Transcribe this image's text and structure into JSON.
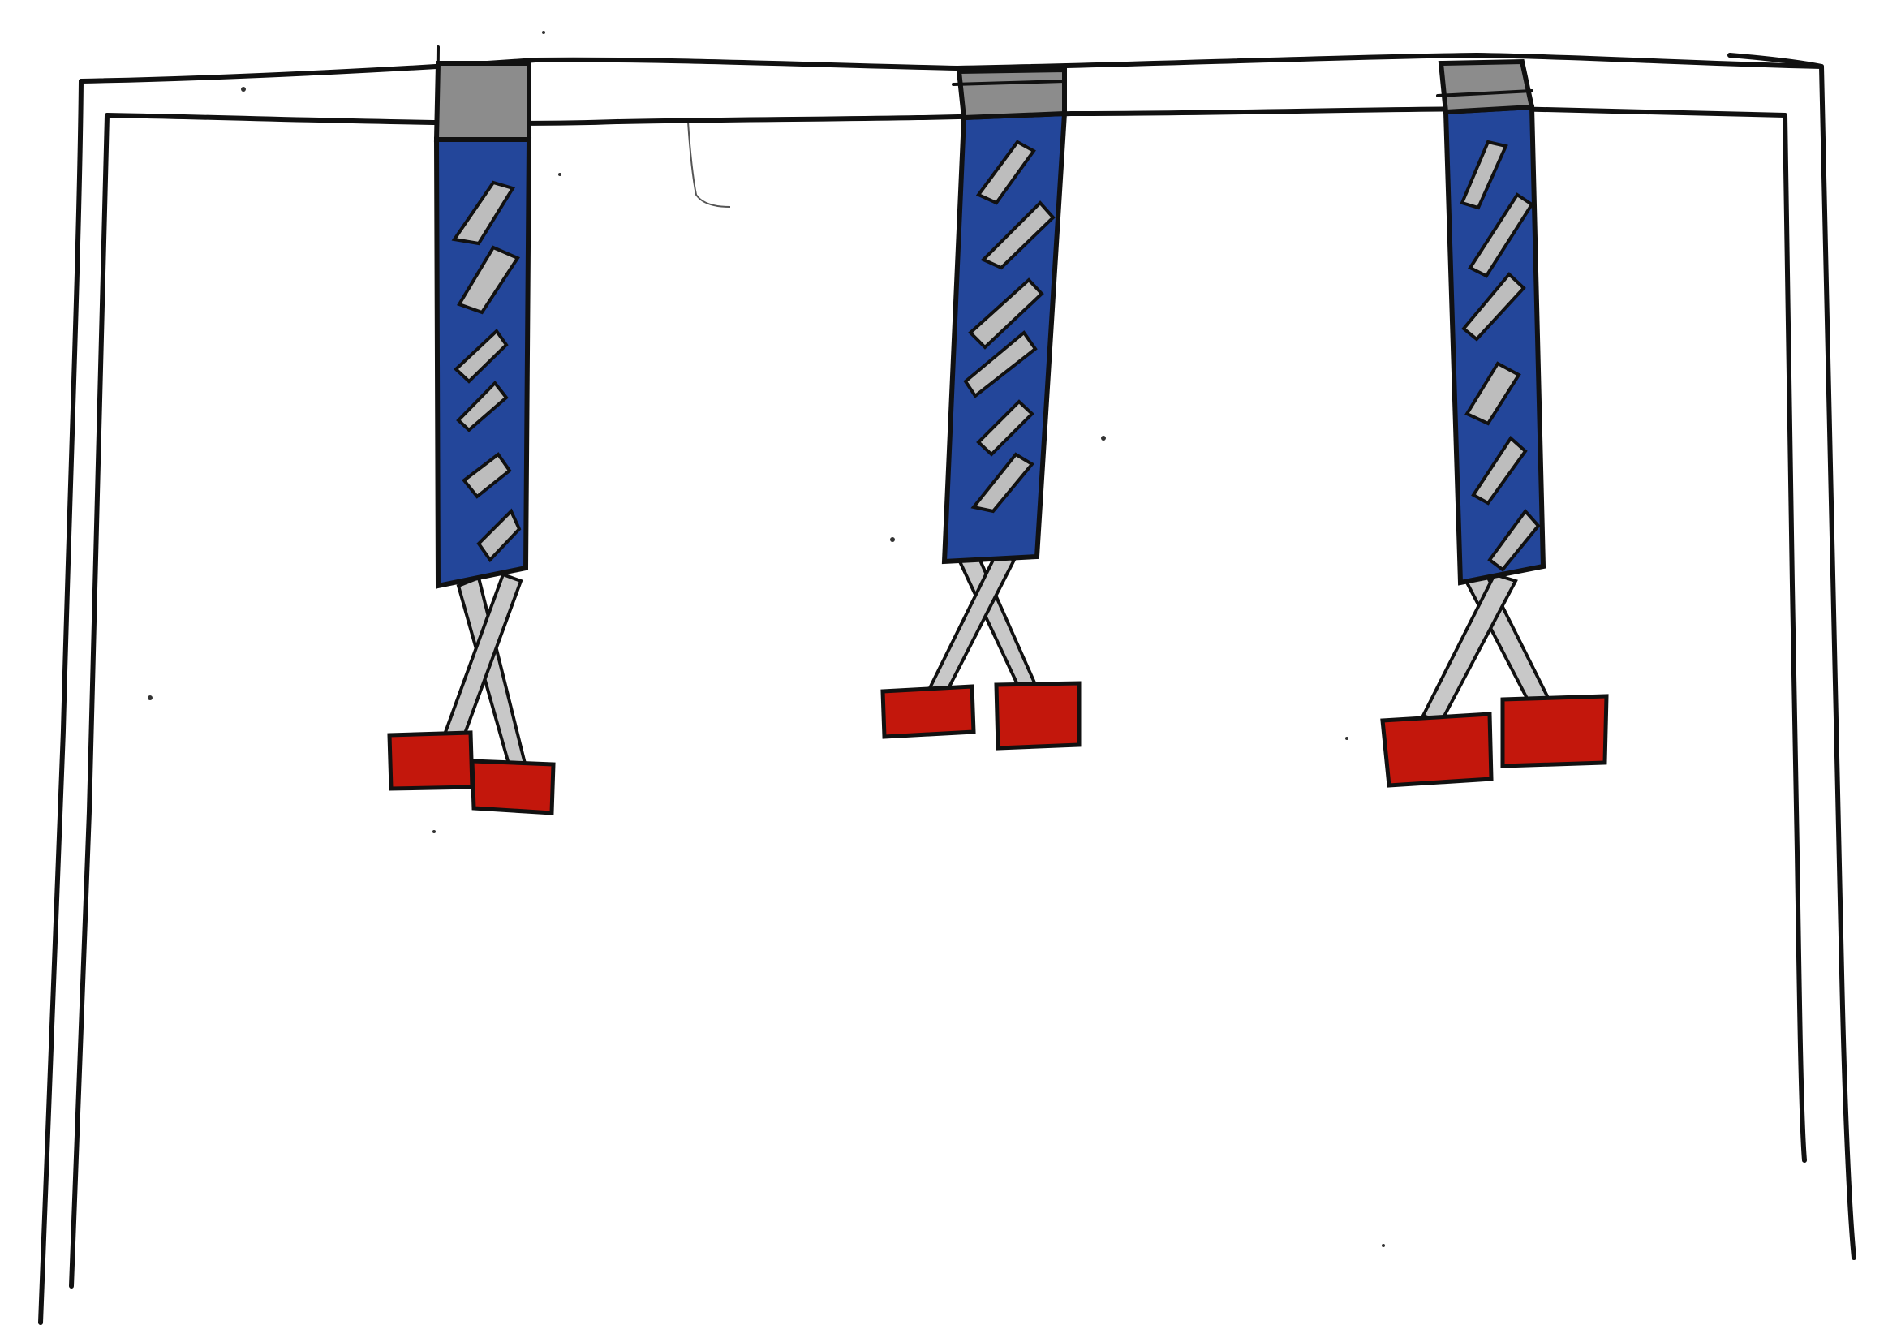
{
  "drawing": {
    "style": "hand-drawn marker sketch",
    "frame_color": "#111111",
    "background_color": "#ffffff"
  },
  "colors": {
    "outline": "#111111",
    "sleeve_blue": "#23469a",
    "band_gray": "#8c8c8c",
    "stripe_gray": "#bdbdbd",
    "leg_gray": "#c8c8c8",
    "foot_red": "#c3170c"
  },
  "figures": [
    {
      "id": "left",
      "legs": "crossed",
      "stripe_count": 6
    },
    {
      "id": "middle",
      "legs": "crossed",
      "stripe_count": 6
    },
    {
      "id": "right",
      "legs": "crossed",
      "stripe_count": 6
    }
  ]
}
